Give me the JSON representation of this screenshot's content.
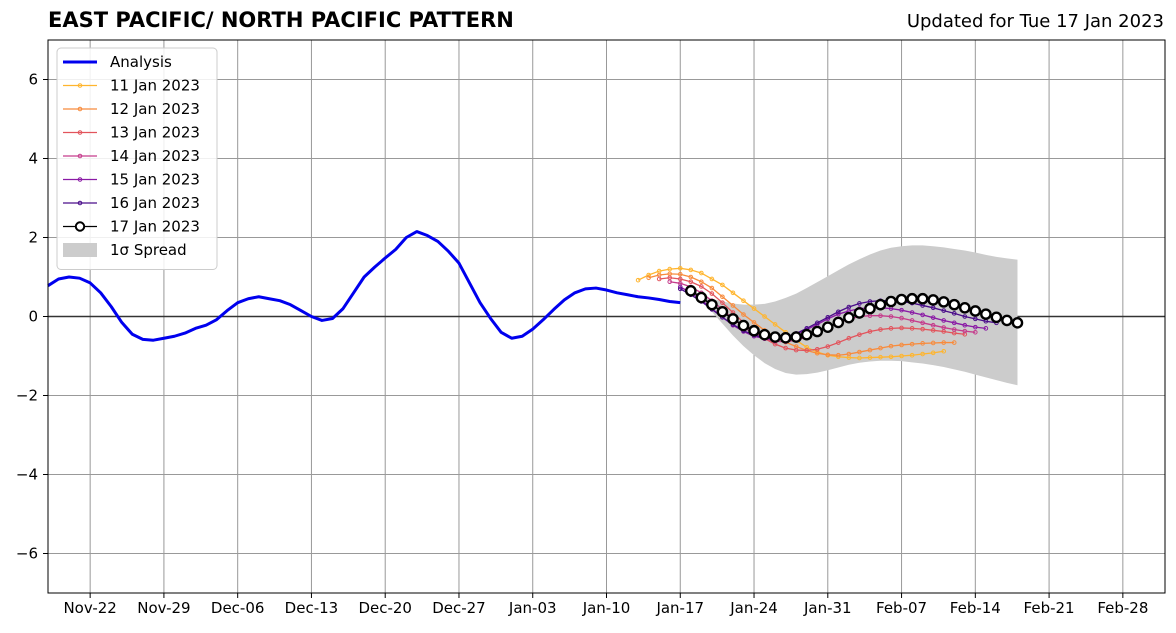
{
  "chart_data": {
    "type": "line",
    "title": "EAST PACIFIC/ NORTH PACIFIC PATTERN",
    "subtitle": "Updated for Tue 17 Jan 2023",
    "xlabel": "",
    "ylabel": "",
    "x_range": [
      "2022-11-18",
      "2023-03-04"
    ],
    "ylim": [
      -7,
      7
    ],
    "yticks": [
      -6,
      -4,
      -2,
      0,
      2,
      4,
      6
    ],
    "ytick_labels": [
      "−6",
      "−4",
      "−2",
      "0",
      "2",
      "4",
      "6"
    ],
    "xticks": [
      "2022-11-22",
      "2022-11-29",
      "2022-12-06",
      "2022-12-13",
      "2022-12-20",
      "2022-12-27",
      "2023-01-03",
      "2023-01-10",
      "2023-01-17",
      "2023-01-24",
      "2023-01-31",
      "2023-02-07",
      "2023-02-14",
      "2023-02-21",
      "2023-02-28"
    ],
    "xtick_labels": [
      "Nov-22",
      "Nov-29",
      "Dec-06",
      "Dec-13",
      "Dec-20",
      "Dec-27",
      "Jan-03",
      "Jan-10",
      "Jan-17",
      "Jan-24",
      "Jan-31",
      "Feb-07",
      "Feb-14",
      "Feb-21",
      "Feb-28"
    ],
    "grid": true,
    "legend_position": "top-left",
    "analysis": {
      "name": "Analysis",
      "color": "#0000ee",
      "x": [
        "2022-11-18",
        "2022-11-19",
        "2022-11-20",
        "2022-11-21",
        "2022-11-22",
        "2022-11-23",
        "2022-11-24",
        "2022-11-25",
        "2022-11-26",
        "2022-11-27",
        "2022-11-28",
        "2022-11-29",
        "2022-11-30",
        "2022-12-01",
        "2022-12-02",
        "2022-12-03",
        "2022-12-04",
        "2022-12-05",
        "2022-12-06",
        "2022-12-07",
        "2022-12-08",
        "2022-12-09",
        "2022-12-10",
        "2022-12-11",
        "2022-12-12",
        "2022-12-13",
        "2022-12-14",
        "2022-12-15",
        "2022-12-16",
        "2022-12-17",
        "2022-12-18",
        "2022-12-19",
        "2022-12-20",
        "2022-12-21",
        "2022-12-22",
        "2022-12-23",
        "2022-12-24",
        "2022-12-25",
        "2022-12-26",
        "2022-12-27",
        "2022-12-28",
        "2022-12-29",
        "2022-12-30",
        "2022-12-31",
        "2023-01-01",
        "2023-01-02",
        "2023-01-03",
        "2023-01-04",
        "2023-01-05",
        "2023-01-06",
        "2023-01-07",
        "2023-01-08",
        "2023-01-09",
        "2023-01-10",
        "2023-01-11",
        "2023-01-12",
        "2023-01-13",
        "2023-01-14",
        "2023-01-15",
        "2023-01-16",
        "2023-01-17"
      ],
      "y": [
        0.78,
        0.95,
        1.0,
        0.97,
        0.85,
        0.6,
        0.25,
        -0.15,
        -0.45,
        -0.58,
        -0.6,
        -0.55,
        -0.5,
        -0.42,
        -0.3,
        -0.22,
        -0.08,
        0.15,
        0.35,
        0.45,
        0.5,
        0.45,
        0.4,
        0.3,
        0.15,
        0.0,
        -0.1,
        -0.05,
        0.2,
        0.6,
        1.0,
        1.25,
        1.48,
        1.7,
        2.0,
        2.15,
        2.05,
        1.9,
        1.65,
        1.35,
        0.85,
        0.35,
        -0.05,
        -0.4,
        -0.55,
        -0.5,
        -0.32,
        -0.08,
        0.18,
        0.42,
        0.6,
        0.7,
        0.72,
        0.67,
        0.6,
        0.55,
        0.5,
        0.47,
        0.43,
        0.38,
        0.35
      ]
    },
    "forecasts": [
      {
        "name": "11 Jan 2023",
        "color": "#ffb52e",
        "start": "2023-01-13",
        "values": [
          0.92,
          1.05,
          1.15,
          1.2,
          1.22,
          1.18,
          1.1,
          0.95,
          0.8,
          0.6,
          0.4,
          0.2,
          0.0,
          -0.2,
          -0.4,
          -0.6,
          -0.78,
          -0.9,
          -0.98,
          -1.02,
          -1.04,
          -1.05,
          -1.04,
          -1.03,
          -1.02,
          -1.0,
          -0.98,
          -0.95,
          -0.92,
          -0.88
        ]
      },
      {
        "name": "12 Jan 2023",
        "color": "#f88b3c",
        "start": "2023-01-14",
        "values": [
          0.98,
          1.05,
          1.08,
          1.07,
          1.0,
          0.88,
          0.72,
          0.5,
          0.28,
          0.05,
          -0.15,
          -0.35,
          -0.52,
          -0.65,
          -0.76,
          -0.86,
          -0.93,
          -0.97,
          -0.98,
          -0.95,
          -0.9,
          -0.85,
          -0.8,
          -0.75,
          -0.72,
          -0.7,
          -0.68,
          -0.67,
          -0.66,
          -0.66
        ]
      },
      {
        "name": "13 Jan 2023",
        "color": "#e2545c",
        "start": "2023-01-15",
        "values": [
          0.95,
          0.98,
          0.95,
          0.88,
          0.76,
          0.58,
          0.35,
          0.1,
          -0.15,
          -0.38,
          -0.56,
          -0.7,
          -0.8,
          -0.85,
          -0.86,
          -0.83,
          -0.76,
          -0.66,
          -0.55,
          -0.46,
          -0.38,
          -0.33,
          -0.3,
          -0.29,
          -0.3,
          -0.32,
          -0.35,
          -0.38,
          -0.42,
          -0.45
        ]
      },
      {
        "name": "14 Jan 2023",
        "color": "#c53c8c",
        "start": "2023-01-16",
        "values": [
          0.88,
          0.84,
          0.75,
          0.6,
          0.4,
          0.18,
          -0.05,
          -0.27,
          -0.44,
          -0.56,
          -0.63,
          -0.64,
          -0.6,
          -0.52,
          -0.4,
          -0.27,
          -0.16,
          -0.07,
          0.0,
          0.02,
          0.02,
          0.0,
          -0.04,
          -0.1,
          -0.16,
          -0.22,
          -0.28,
          -0.33,
          -0.37,
          -0.4
        ]
      },
      {
        "name": "15 Jan 2023",
        "color": "#8a1aa5",
        "start": "2023-01-17",
        "values": [
          0.75,
          0.6,
          0.42,
          0.2,
          -0.02,
          -0.22,
          -0.38,
          -0.5,
          -0.56,
          -0.58,
          -0.54,
          -0.45,
          -0.33,
          -0.2,
          -0.06,
          0.06,
          0.14,
          0.2,
          0.22,
          0.22,
          0.2,
          0.16,
          0.1,
          0.04,
          -0.03,
          -0.1,
          -0.16,
          -0.22,
          -0.27,
          -0.3
        ]
      },
      {
        "name": "16 Jan 2023",
        "color": "#4a0d8a",
        "start": "2023-01-17",
        "values": [
          0.7,
          0.55,
          0.38,
          0.18,
          -0.02,
          -0.2,
          -0.36,
          -0.47,
          -0.54,
          -0.56,
          -0.52,
          -0.43,
          -0.3,
          -0.16,
          -0.02,
          0.12,
          0.24,
          0.33,
          0.38,
          0.4,
          0.4,
          0.38,
          0.34,
          0.28,
          0.22,
          0.15,
          0.08,
          0.0,
          -0.06,
          -0.12,
          -0.16
        ]
      },
      {
        "name": "17 Jan 2023",
        "color": "#000000",
        "start": "2023-01-18",
        "values": [
          0.65,
          0.48,
          0.3,
          0.12,
          -0.06,
          -0.23,
          -0.36,
          -0.46,
          -0.52,
          -0.54,
          -0.52,
          -0.46,
          -0.38,
          -0.27,
          -0.15,
          -0.03,
          0.09,
          0.2,
          0.3,
          0.38,
          0.43,
          0.45,
          0.45,
          0.42,
          0.37,
          0.3,
          0.22,
          0.14,
          0.06,
          -0.02,
          -0.1,
          -0.16
        ]
      }
    ],
    "spread": {
      "name": "1σ Spread",
      "color": "#cccccc",
      "start": "2023-01-18",
      "upper": [
        0.65,
        0.55,
        0.45,
        0.38,
        0.33,
        0.3,
        0.3,
        0.32,
        0.38,
        0.47,
        0.58,
        0.72,
        0.87,
        1.02,
        1.17,
        1.32,
        1.45,
        1.57,
        1.67,
        1.74,
        1.78,
        1.8,
        1.8,
        1.78,
        1.75,
        1.71,
        1.67,
        1.62,
        1.56,
        1.51,
        1.47,
        1.44
      ],
      "lower": [
        0.65,
        0.4,
        0.12,
        -0.18,
        -0.48,
        -0.75,
        -0.98,
        -1.18,
        -1.33,
        -1.43,
        -1.47,
        -1.46,
        -1.42,
        -1.36,
        -1.29,
        -1.22,
        -1.17,
        -1.14,
        -1.12,
        -1.12,
        -1.13,
        -1.16,
        -1.19,
        -1.23,
        -1.28,
        -1.34,
        -1.4,
        -1.47,
        -1.54,
        -1.61,
        -1.68,
        -1.74
      ]
    }
  }
}
